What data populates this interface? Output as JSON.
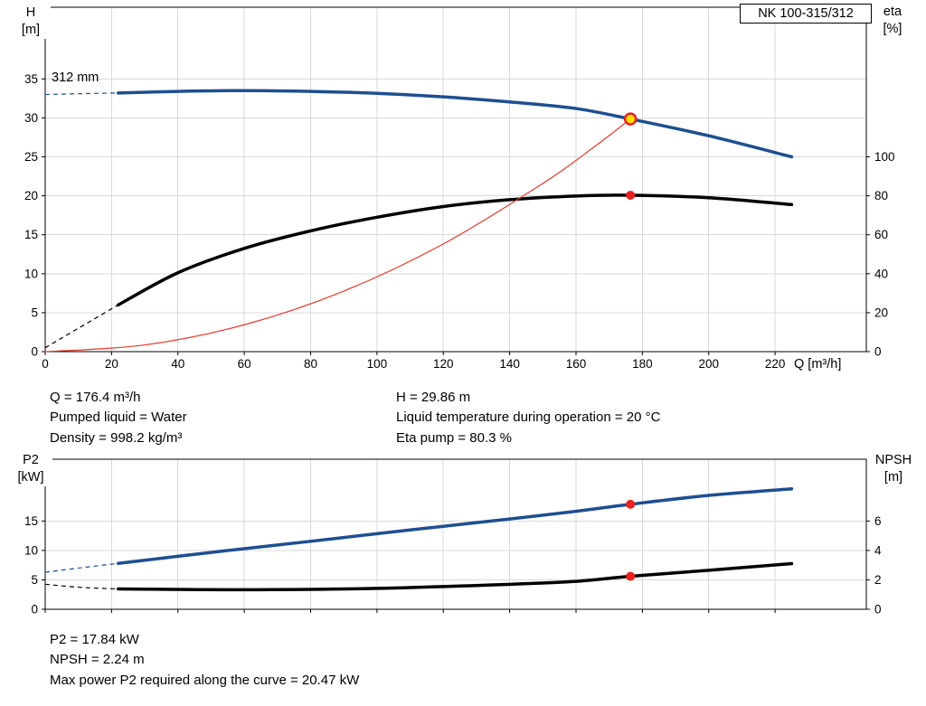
{
  "title_box": {
    "label": "NK 100-315/312"
  },
  "info_top": {
    "left": [
      "Q = 176.4 m³/h",
      "Pumped liquid = Water",
      "Density = 998.2 kg/m³"
    ],
    "right": [
      "H = 29.86 m",
      "Liquid temperature during operation = 20 °C",
      "Eta pump = 80.3 %"
    ]
  },
  "info_bottom": [
    "P2 = 17.84 kW",
    "NPSH = 2.24 m",
    "Max power P2 required along the curve = 20.47 kW"
  ],
  "colors": {
    "curve_blue": "#1d4f91",
    "curve_black": "#000000",
    "curve_red": "#e8392b",
    "marker_red": "#e8231f",
    "marker_yellow": "#ffe000",
    "grid": "#d9d9d9",
    "axis": "#000000",
    "text": "#000000"
  },
  "chart_data": [
    {
      "type": "line",
      "name": "qh-eta-chart",
      "x_axis": {
        "label": "Q [m³/h]",
        "min": 0,
        "max": 247.5,
        "ticks": [
          0,
          20,
          40,
          60,
          80,
          100,
          120,
          140,
          160,
          180,
          200,
          220
        ],
        "show_labels": true
      },
      "y_left": {
        "name": "H",
        "unit": "[m]",
        "min": 0,
        "max": 44.2,
        "ticks": [
          0,
          5,
          10,
          15,
          20,
          25,
          30,
          35
        ]
      },
      "y_right": {
        "name": "eta",
        "unit": "[%]",
        "min": 0,
        "max": 176.8,
        "ticks": [
          0,
          20,
          40,
          60,
          80,
          100
        ]
      },
      "annotations": [
        {
          "text": "312 mm"
        }
      ],
      "series": [
        {
          "name": "head-curve",
          "axis": "left",
          "color": "curve_blue",
          "width": 3.5,
          "dashed_lead": [
            [
              0,
              33.0
            ],
            [
              10,
              33.1
            ],
            [
              22,
              33.2
            ]
          ],
          "points": [
            [
              22,
              33.2
            ],
            [
              40,
              33.4
            ],
            [
              60,
              33.5
            ],
            [
              80,
              33.4
            ],
            [
              100,
              33.15
            ],
            [
              120,
              32.7
            ],
            [
              140,
              32.05
            ],
            [
              160,
              31.2
            ],
            [
              176.4,
              29.86
            ],
            [
              200,
              27.7
            ],
            [
              225,
              25.0
            ]
          ]
        },
        {
          "name": "efficiency-curve",
          "axis": "right",
          "color": "curve_black",
          "width": 3.5,
          "dashed_lead": [
            [
              0,
              2
            ],
            [
              10,
              12
            ],
            [
              22,
              24
            ]
          ],
          "points": [
            [
              22,
              24
            ],
            [
              40,
              40.5
            ],
            [
              60,
              53
            ],
            [
              80,
              62
            ],
            [
              100,
              69
            ],
            [
              120,
              74.5
            ],
            [
              140,
              78
            ],
            [
              160,
              79.9
            ],
            [
              176.4,
              80.3
            ],
            [
              200,
              79
            ],
            [
              225,
              75.5
            ]
          ]
        },
        {
          "name": "system-curve",
          "axis": "left",
          "color": "curve_red",
          "width": 1.2,
          "points": [
            [
              0,
              0
            ],
            [
              30,
              0.86
            ],
            [
              60,
              3.45
            ],
            [
              90,
              7.77
            ],
            [
              120,
              13.82
            ],
            [
              150,
              21.59
            ],
            [
              165,
              26.13
            ],
            [
              176.4,
              29.86
            ]
          ]
        }
      ],
      "markers": [
        {
          "name": "duty-point",
          "x": 176.4,
          "y": 29.86,
          "axis": "left",
          "style": "duty"
        },
        {
          "name": "eta-point",
          "x": 176.4,
          "y": 80.3,
          "axis": "right",
          "style": "dot"
        }
      ]
    },
    {
      "type": "line",
      "name": "p2-npsh-chart",
      "x_axis": {
        "label": "",
        "min": 0,
        "max": 247.5,
        "ticks": [
          0,
          20,
          40,
          60,
          80,
          100,
          120,
          140,
          160,
          180,
          200,
          220
        ],
        "show_labels": false
      },
      "y_left": {
        "name": "P2",
        "unit": "[kW]",
        "min": 0,
        "max": 25.5,
        "ticks": [
          0,
          5,
          10,
          15
        ]
      },
      "y_right": {
        "name": "NPSH",
        "unit": "[m]",
        "min": 0,
        "max": 10.2,
        "ticks": [
          0,
          2,
          4,
          6
        ]
      },
      "annotations": [],
      "series": [
        {
          "name": "p2-curve",
          "axis": "left",
          "color": "curve_blue",
          "width": 3.5,
          "dashed_lead": [
            [
              0,
              6.3
            ],
            [
              10,
              7.0
            ],
            [
              22,
              7.8
            ]
          ],
          "points": [
            [
              22,
              7.8
            ],
            [
              40,
              9.0
            ],
            [
              60,
              10.3
            ],
            [
              80,
              11.55
            ],
            [
              100,
              12.85
            ],
            [
              120,
              14.1
            ],
            [
              140,
              15.35
            ],
            [
              160,
              16.65
            ],
            [
              176.4,
              17.84
            ],
            [
              200,
              19.35
            ],
            [
              225,
              20.47
            ]
          ]
        },
        {
          "name": "npsh-curve",
          "axis": "right",
          "color": "curve_black",
          "width": 3.5,
          "dashed_lead": [
            [
              0,
              1.7
            ],
            [
              10,
              1.5
            ],
            [
              22,
              1.38
            ]
          ],
          "points": [
            [
              22,
              1.38
            ],
            [
              60,
              1.33
            ],
            [
              100,
              1.42
            ],
            [
              140,
              1.7
            ],
            [
              160,
              1.9
            ],
            [
              176.4,
              2.24
            ],
            [
              200,
              2.65
            ],
            [
              225,
              3.1
            ]
          ]
        }
      ],
      "markers": [
        {
          "name": "p2-point",
          "x": 176.4,
          "y": 17.84,
          "axis": "left",
          "style": "dot"
        },
        {
          "name": "npsh-point",
          "x": 176.4,
          "y": 2.24,
          "axis": "right",
          "style": "dot"
        }
      ]
    }
  ]
}
